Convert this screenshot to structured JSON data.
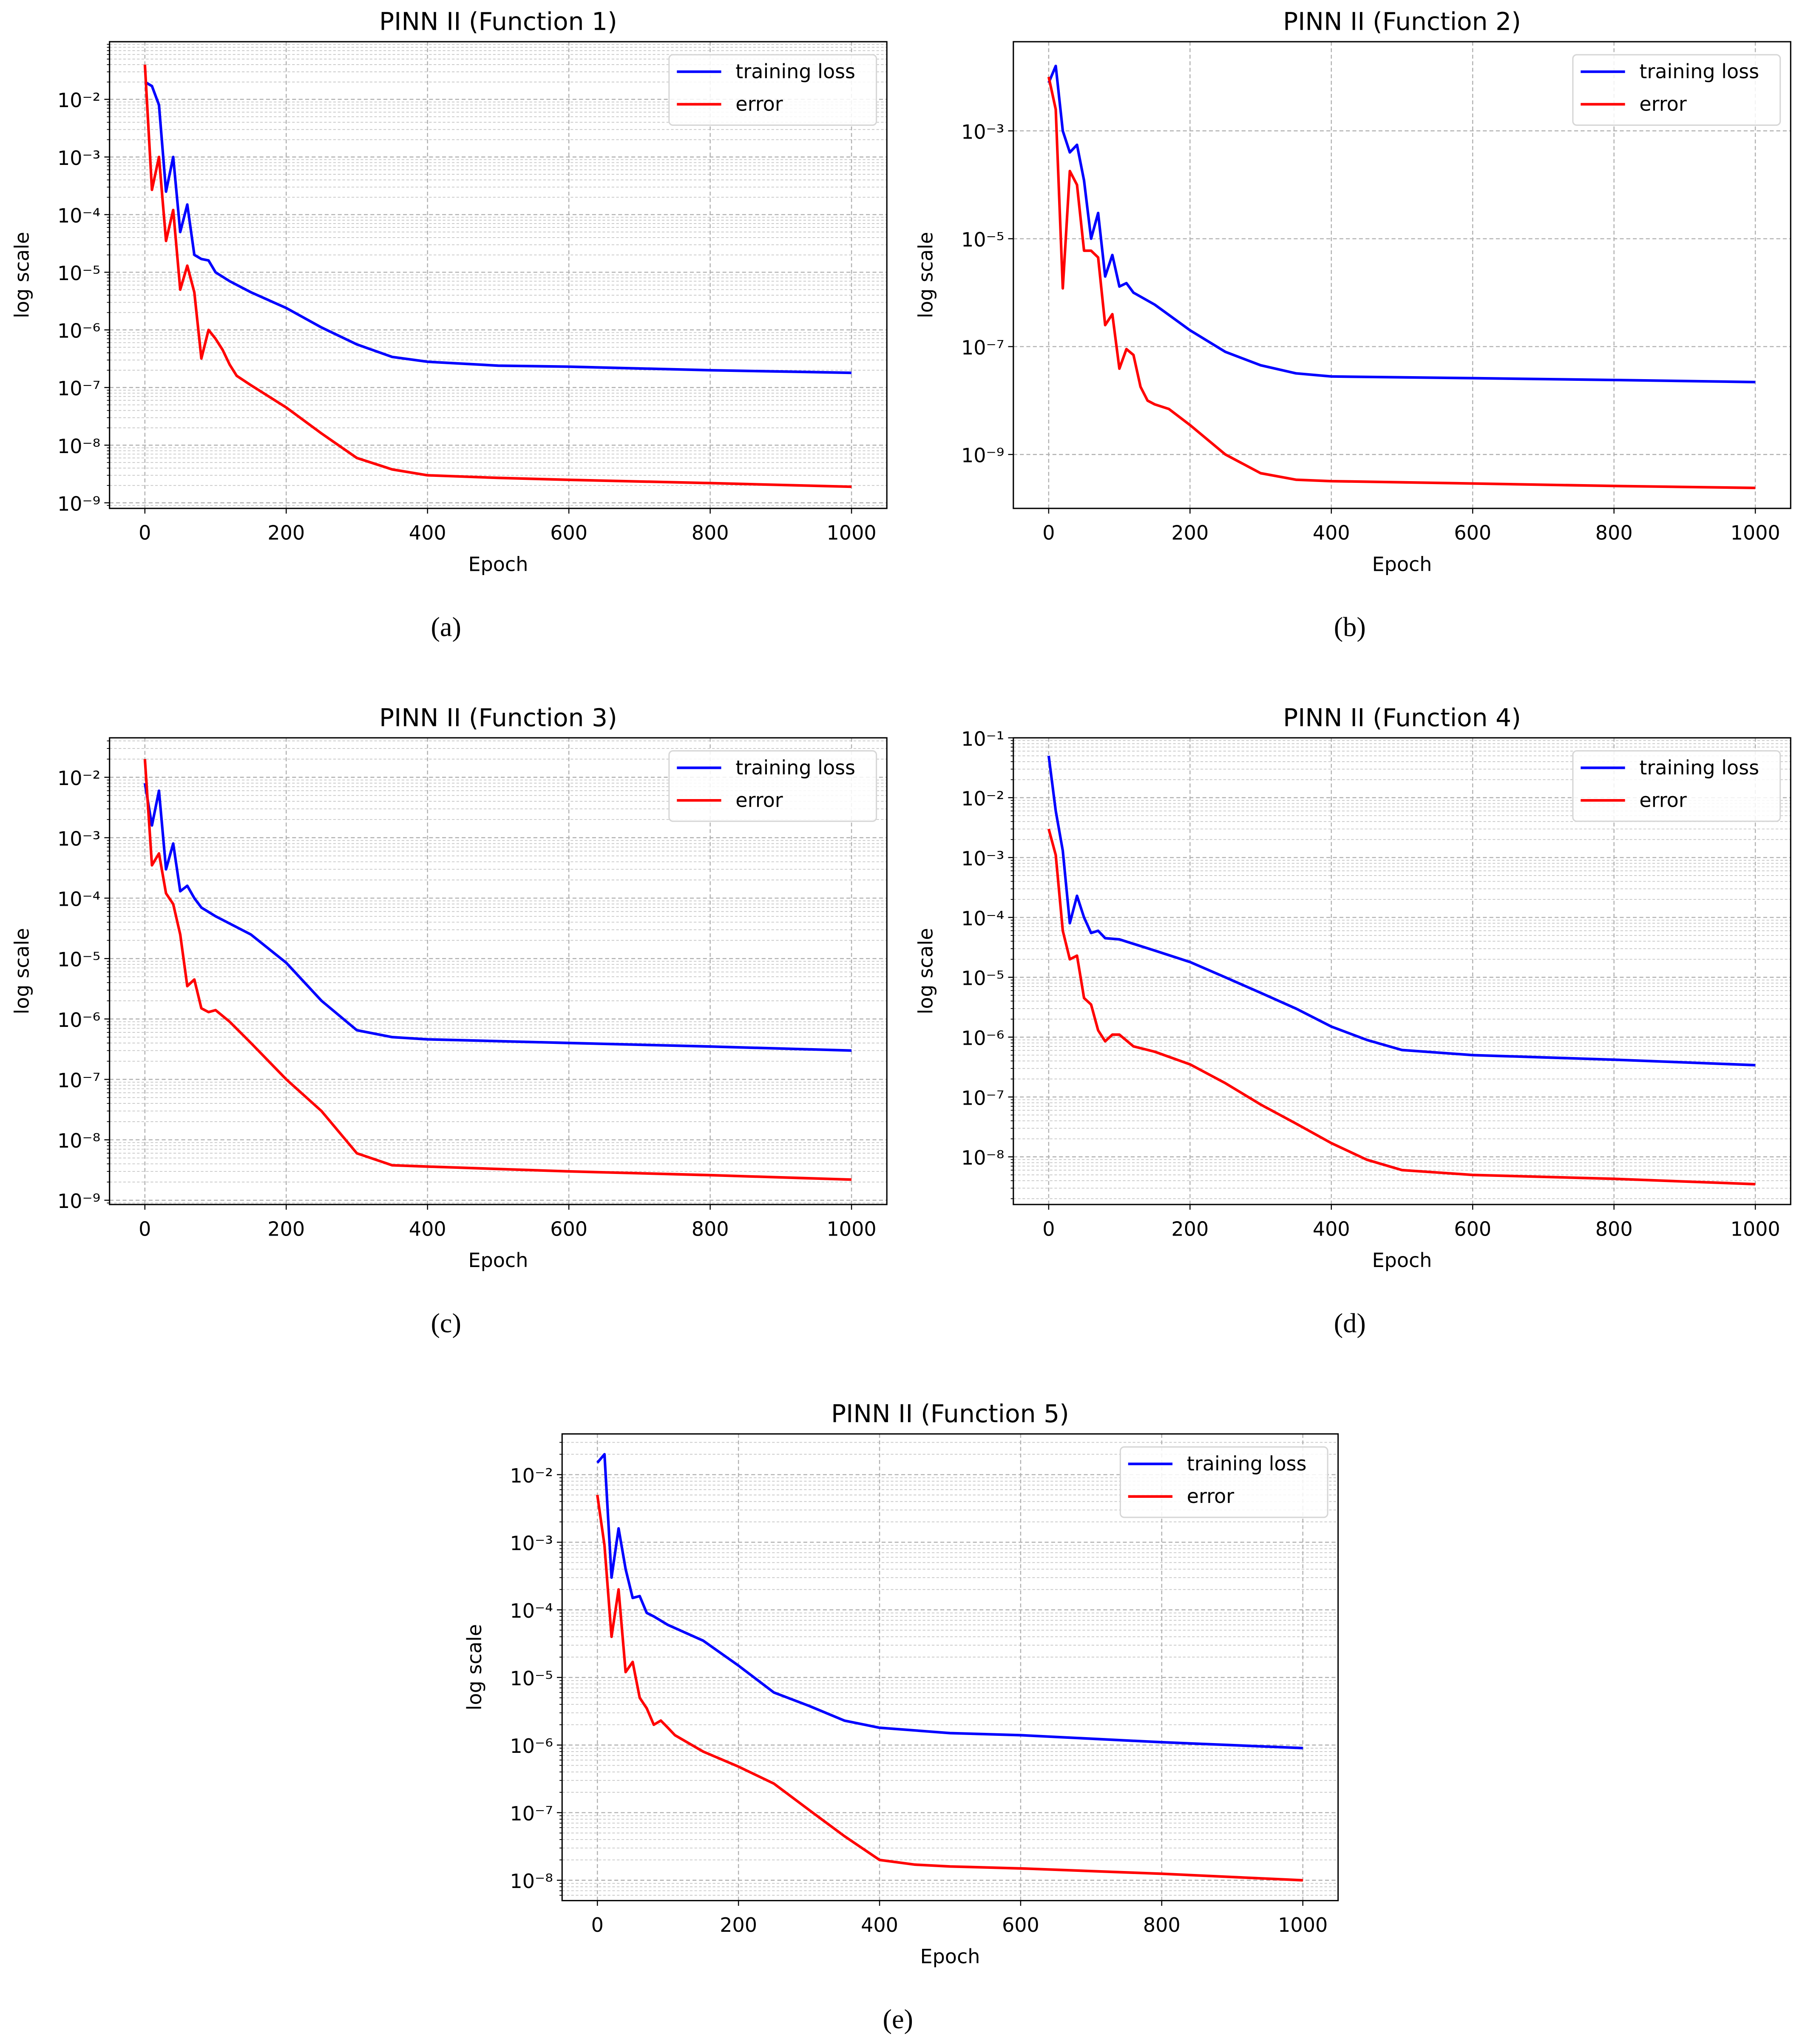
{
  "chart_data": [
    {
      "type": "line",
      "title": "PINN II (Function 1)",
      "caption": "(a)",
      "xlabel": "Epoch",
      "ylabel": "log scale",
      "yscale": "log",
      "xlim": [
        -50,
        1050
      ],
      "ylim": [
        8e-10,
        0.1
      ],
      "xticks": [
        0,
        200,
        400,
        600,
        800,
        1000
      ],
      "xtick_labels": [
        "0",
        "200",
        "400",
        "600",
        "800",
        "1000"
      ],
      "yticks": [
        0.01,
        0.001,
        0.0001,
        1e-05,
        1e-06,
        1e-07,
        1e-08,
        1e-09
      ],
      "ytick_labels": [
        "10⁻²",
        "10⁻³",
        "10⁻⁴",
        "10⁻⁵",
        "10⁻⁶",
        "10⁻⁷",
        "10⁻⁸",
        "10⁻⁹"
      ],
      "grid": "major+minor",
      "legend_position": "top-right",
      "series": [
        {
          "name": "training loss",
          "color": "#0000ff",
          "x": [
            0,
            10,
            20,
            30,
            40,
            50,
            60,
            70,
            80,
            90,
            100,
            120,
            150,
            200,
            250,
            300,
            350,
            400,
            500,
            600,
            800,
            1000
          ],
          "y": [
            0.02,
            0.017,
            0.008,
            0.00025,
            0.001,
            5e-05,
            0.00015,
            2e-05,
            1.7e-05,
            1.6e-05,
            1e-05,
            7e-06,
            4.5e-06,
            2.4e-06,
            1.1e-06,
            5.6e-07,
            3.4e-07,
            2.8e-07,
            2.4e-07,
            2.3e-07,
            2e-07,
            1.8e-07
          ]
        },
        {
          "name": "error",
          "color": "#ff0000",
          "x": [
            0,
            10,
            20,
            30,
            40,
            50,
            60,
            70,
            80,
            90,
            100,
            110,
            120,
            130,
            150,
            200,
            250,
            300,
            350,
            400,
            500,
            600,
            800,
            1000
          ],
          "y": [
            0.04,
            0.00027,
            0.001,
            3.5e-05,
            0.00012,
            5e-06,
            1.3e-05,
            4.5e-06,
            3.2e-07,
            1e-06,
            7e-07,
            4.5e-07,
            2.5e-07,
            1.6e-07,
            1.1e-07,
            4.5e-08,
            1.6e-08,
            6e-09,
            3.8e-09,
            3e-09,
            2.7e-09,
            2.5e-09,
            2.2e-09,
            1.9e-09
          ]
        }
      ]
    },
    {
      "type": "line",
      "title": "PINN II (Function 2)",
      "caption": "(b)",
      "xlabel": "Epoch",
      "ylabel": "log scale",
      "yscale": "log",
      "xlim": [
        -50,
        1050
      ],
      "ylim": [
        1e-10,
        0.045
      ],
      "xticks": [
        0,
        200,
        400,
        600,
        800,
        1000
      ],
      "xtick_labels": [
        "0",
        "200",
        "400",
        "600",
        "800",
        "1000"
      ],
      "yticks": [
        0.001,
        1e-05,
        1e-07,
        1e-09
      ],
      "ytick_labels": [
        "10⁻³",
        "10⁻⁵",
        "10⁻⁷",
        "10⁻⁹"
      ],
      "grid": "major",
      "legend_position": "top-right",
      "series": [
        {
          "name": "training loss",
          "color": "#0000ff",
          "x": [
            0,
            10,
            20,
            30,
            40,
            50,
            60,
            70,
            80,
            90,
            100,
            110,
            120,
            150,
            200,
            250,
            300,
            350,
            400,
            600,
            800,
            1000
          ],
          "y": [
            0.0078,
            0.016,
            0.001,
            0.0004,
            0.00055,
            0.00012,
            1e-05,
            3e-05,
            2e-06,
            5e-06,
            1.3e-06,
            1.5e-06,
            1e-06,
            6e-07,
            2e-07,
            8e-08,
            4.5e-08,
            3.2e-08,
            2.8e-08,
            2.6e-08,
            2.4e-08,
            2.2e-08
          ]
        },
        {
          "name": "error",
          "color": "#ff0000",
          "x": [
            0,
            10,
            20,
            30,
            40,
            50,
            60,
            70,
            80,
            90,
            100,
            110,
            120,
            130,
            140,
            150,
            170,
            200,
            250,
            300,
            350,
            400,
            600,
            800,
            1000
          ],
          "y": [
            0.01,
            0.0025,
            1.2e-06,
            0.00018,
            0.0001,
            6e-06,
            6e-06,
            4.5e-06,
            2.5e-07,
            4e-07,
            3.9e-08,
            9e-08,
            7e-08,
            1.8e-08,
            1e-08,
            8.5e-09,
            7e-09,
            3.5e-09,
            1e-09,
            4.5e-10,
            3.4e-10,
            3.2e-10,
            2.9e-10,
            2.6e-10,
            2.4e-10
          ]
        }
      ]
    },
    {
      "type": "line",
      "title": "PINN II (Function 3)",
      "caption": "(c)",
      "xlabel": "Epoch",
      "ylabel": "log scale",
      "yscale": "log",
      "xlim": [
        -50,
        1050
      ],
      "ylim": [
        8.5e-10,
        0.045
      ],
      "xticks": [
        0,
        200,
        400,
        600,
        800,
        1000
      ],
      "xtick_labels": [
        "0",
        "200",
        "400",
        "600",
        "800",
        "1000"
      ],
      "yticks": [
        0.01,
        0.001,
        0.0001,
        1e-05,
        1e-06,
        1e-07,
        1e-08,
        1e-09
      ],
      "ytick_labels": [
        "10⁻²",
        "10⁻³",
        "10⁻⁴",
        "10⁻⁵",
        "10⁻⁶",
        "10⁻⁷",
        "10⁻⁸",
        "10⁻⁹"
      ],
      "grid": "major+minor",
      "legend_position": "top-right",
      "series": [
        {
          "name": "training loss",
          "color": "#0000ff",
          "x": [
            0,
            10,
            20,
            30,
            40,
            50,
            60,
            70,
            80,
            100,
            150,
            200,
            250,
            300,
            350,
            400,
            600,
            800,
            1000
          ],
          "y": [
            0.008,
            0.0016,
            0.006,
            0.0003,
            0.0008,
            0.00013,
            0.00016,
            0.0001,
            7e-05,
            5e-05,
            2.5e-05,
            8.5e-06,
            2e-06,
            6.5e-07,
            5e-07,
            4.6e-07,
            4e-07,
            3.5e-07,
            3e-07
          ]
        },
        {
          "name": "error",
          "color": "#ff0000",
          "x": [
            0,
            10,
            20,
            30,
            40,
            50,
            60,
            70,
            80,
            90,
            100,
            120,
            150,
            200,
            250,
            300,
            350,
            400,
            600,
            800,
            1000
          ],
          "y": [
            0.02,
            0.00035,
            0.00055,
            0.00012,
            8e-05,
            2.5e-05,
            3.5e-06,
            4.5e-06,
            1.5e-06,
            1.3e-06,
            1.4e-06,
            9e-07,
            4e-07,
            1e-07,
            3e-08,
            6e-09,
            3.8e-09,
            3.6e-09,
            3e-09,
            2.6e-09,
            2.2e-09
          ]
        }
      ]
    },
    {
      "type": "line",
      "title": "PINN II (Function 4)",
      "caption": "(d)",
      "xlabel": "Epoch",
      "ylabel": "log scale",
      "yscale": "log",
      "xlim": [
        -50,
        1050
      ],
      "ylim": [
        1.6e-09,
        0.1
      ],
      "xticks": [
        0,
        200,
        400,
        600,
        800,
        1000
      ],
      "xtick_labels": [
        "0",
        "200",
        "400",
        "600",
        "800",
        "1000"
      ],
      "yticks": [
        0.1,
        0.01,
        0.001,
        0.0001,
        1e-05,
        1e-06,
        1e-07,
        1e-08
      ],
      "ytick_labels": [
        "10⁻¹",
        "10⁻²",
        "10⁻³",
        "10⁻⁴",
        "10⁻⁵",
        "10⁻⁶",
        "10⁻⁷",
        "10⁻⁸"
      ],
      "grid": "major+minor",
      "legend_position": "top-right",
      "series": [
        {
          "name": "training loss",
          "color": "#0000ff",
          "x": [
            0,
            10,
            20,
            30,
            40,
            50,
            60,
            70,
            80,
            100,
            150,
            200,
            250,
            300,
            350,
            400,
            450,
            500,
            600,
            800,
            1000
          ],
          "y": [
            0.05,
            0.006,
            0.0013,
            8e-05,
            0.00023,
            0.0001,
            5.5e-05,
            6e-05,
            4.5e-05,
            4.3e-05,
            2.8e-05,
            1.8e-05,
            1e-05,
            5.5e-06,
            3e-06,
            1.5e-06,
            9e-07,
            6.1e-07,
            5e-07,
            4.2e-07,
            3.4e-07
          ]
        },
        {
          "name": "error",
          "color": "#ff0000",
          "x": [
            0,
            10,
            20,
            30,
            40,
            50,
            60,
            70,
            80,
            90,
            100,
            120,
            150,
            200,
            250,
            300,
            350,
            400,
            450,
            500,
            600,
            800,
            1000
          ],
          "y": [
            0.003,
            0.0011,
            6e-05,
            2e-05,
            2.3e-05,
            4.5e-06,
            3.5e-06,
            1.3e-06,
            8.5e-07,
            1.1e-06,
            1.1e-06,
            7e-07,
            5.7e-07,
            3.5e-07,
            1.7e-07,
            7.5e-08,
            3.6e-08,
            1.7e-08,
            9e-09,
            6e-09,
            5e-09,
            4.3e-09,
            3.5e-09
          ]
        }
      ]
    },
    {
      "type": "line",
      "title": "PINN II (Function 5)",
      "caption": "(e)",
      "xlabel": "Epoch",
      "ylabel": "log scale",
      "yscale": "log",
      "xlim": [
        -50,
        1050
      ],
      "ylim": [
        5e-09,
        0.04
      ],
      "xticks": [
        0,
        200,
        400,
        600,
        800,
        1000
      ],
      "xtick_labels": [
        "0",
        "200",
        "400",
        "600",
        "800",
        "1000"
      ],
      "yticks": [
        0.01,
        0.001,
        0.0001,
        1e-05,
        1e-06,
        1e-07,
        1e-08
      ],
      "ytick_labels": [
        "10⁻²",
        "10⁻³",
        "10⁻⁴",
        "10⁻⁵",
        "10⁻⁶",
        "10⁻⁷",
        "10⁻⁸"
      ],
      "grid": "major+minor",
      "legend_position": "top-right",
      "series": [
        {
          "name": "training loss",
          "color": "#0000ff",
          "x": [
            0,
            10,
            20,
            30,
            40,
            50,
            60,
            70,
            80,
            100,
            150,
            200,
            250,
            300,
            350,
            400,
            500,
            600,
            800,
            1000
          ],
          "y": [
            0.015,
            0.02,
            0.0003,
            0.0016,
            0.0004,
            0.00015,
            0.00016,
            9e-05,
            8e-05,
            6e-05,
            3.5e-05,
            1.5e-05,
            6e-06,
            3.8e-06,
            2.3e-06,
            1.8e-06,
            1.5e-06,
            1.4e-06,
            1.1e-06,
            9e-07
          ]
        },
        {
          "name": "error",
          "color": "#ff0000",
          "x": [
            0,
            10,
            20,
            30,
            40,
            50,
            60,
            70,
            80,
            90,
            100,
            110,
            150,
            200,
            250,
            300,
            350,
            400,
            450,
            500,
            600,
            800,
            1000
          ],
          "y": [
            0.005,
            0.0009,
            4e-05,
            0.0002,
            1.2e-05,
            1.7e-05,
            5e-06,
            3.5e-06,
            2e-06,
            2.3e-06,
            1.8e-06,
            1.4e-06,
            8e-07,
            4.8e-07,
            2.7e-07,
            1.1e-07,
            4.5e-08,
            2e-08,
            1.7e-08,
            1.6e-08,
            1.5e-08,
            1.25e-08,
            1e-08
          ]
        }
      ]
    }
  ]
}
